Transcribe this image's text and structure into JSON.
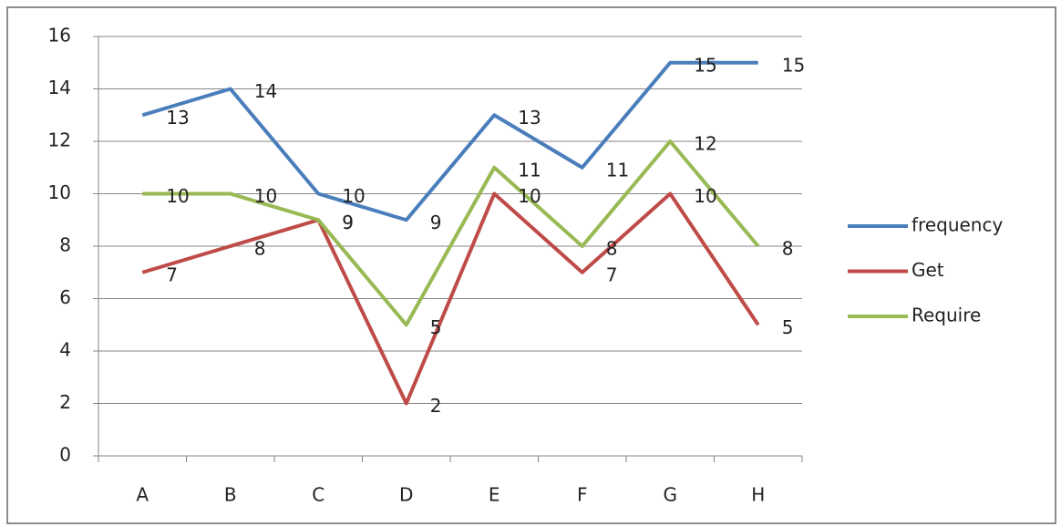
{
  "chart_data": {
    "type": "line",
    "categories": [
      "A",
      "B",
      "C",
      "D",
      "E",
      "F",
      "G",
      "H"
    ],
    "series": [
      {
        "name": "frequency",
        "color": "#4a7ebb",
        "values": [
          13,
          14,
          10,
          9,
          13,
          11,
          15,
          15
        ]
      },
      {
        "name": "Get",
        "color": "#be4b48",
        "values": [
          7,
          8,
          9,
          2,
          10,
          7,
          10,
          5
        ]
      },
      {
        "name": "Require",
        "color": "#98b954",
        "values": [
          10,
          10,
          9,
          5,
          11,
          8,
          12,
          8
        ]
      }
    ],
    "ylim": [
      0,
      16
    ],
    "yticks": [
      0,
      2,
      4,
      6,
      8,
      10,
      12,
      14,
      16
    ],
    "grid": true,
    "legend": "right"
  }
}
